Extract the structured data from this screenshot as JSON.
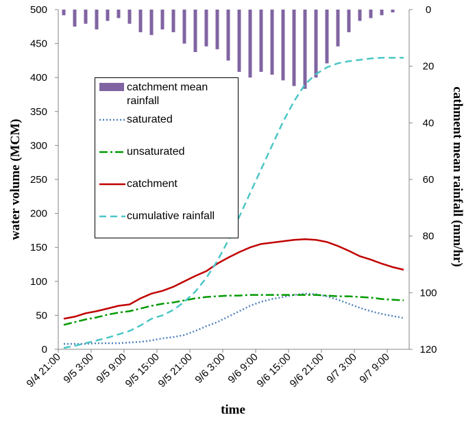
{
  "chart_data": {
    "type": "combo",
    "x_label": "time",
    "y_label": "water volume (MCM)",
    "y2_label": "cathment  mean rainfall (mm/hr)",
    "categories": [
      "9/4 21:00",
      null,
      null,
      "9/5 3:00",
      null,
      null,
      "9/5 9:00",
      null,
      null,
      "9/5 15:00",
      null,
      null,
      "9/5 21:00",
      null,
      null,
      "9/6 3:00",
      null,
      null,
      "9/6 9:00",
      null,
      null,
      "9/6 15:00",
      null,
      null,
      "9/6 21:00",
      null,
      null,
      "9/7 3:00",
      null,
      null,
      "9/7 9:00",
      null
    ],
    "ylim": [
      0,
      500
    ],
    "yticks": [
      0,
      50,
      100,
      150,
      200,
      250,
      300,
      350,
      400,
      450,
      500
    ],
    "y2lim": [
      0,
      120
    ],
    "y2ticks": [
      0,
      20,
      40,
      60,
      80,
      100,
      120
    ],
    "y2_inverted": true,
    "series": [
      {
        "name": "catchment mean rainfall",
        "type": "bar",
        "axis": "y2",
        "color": "#8064a2",
        "values": [
          2,
          6,
          5,
          7,
          4,
          3,
          5,
          8,
          9,
          7,
          8,
          12,
          15,
          13,
          14,
          18,
          22,
          24,
          22,
          23,
          25,
          27,
          28,
          24,
          19,
          13,
          8,
          4,
          3,
          2,
          1,
          0
        ]
      },
      {
        "name": "saturated",
        "type": "line",
        "color": "#4f81bd",
        "dash": "2 3",
        "values": [
          8,
          8,
          8,
          9,
          9,
          9,
          10,
          11,
          13,
          16,
          18,
          21,
          27,
          34,
          40,
          48,
          56,
          64,
          70,
          74,
          77,
          80,
          82,
          81,
          78,
          73,
          67,
          61,
          56,
          52,
          49,
          46
        ]
      },
      {
        "name": "unsaturated",
        "type": "line",
        "color": "#009900",
        "dash": "12 4 3 4",
        "values": [
          36,
          40,
          44,
          47,
          51,
          54,
          56,
          60,
          64,
          67,
          69,
          72,
          75,
          77,
          78,
          79,
          79,
          80,
          80,
          80,
          80,
          80,
          80,
          80,
          79,
          78,
          78,
          77,
          76,
          74,
          73,
          72
        ]
      },
      {
        "name": "catchment",
        "type": "line",
        "color": "#c00000",
        "dash": "none",
        "values": [
          45,
          48,
          53,
          56,
          60,
          64,
          66,
          75,
          82,
          86,
          92,
          100,
          108,
          115,
          126,
          135,
          143,
          150,
          155,
          157,
          159,
          161,
          162,
          161,
          158,
          152,
          145,
          137,
          132,
          126,
          121,
          117
        ]
      },
      {
        "name": "cumulative rainfall",
        "type": "line",
        "color": "#4bc6c6",
        "dash": "10 6",
        "values": [
          2,
          5,
          9,
          13,
          17,
          22,
          27,
          35,
          45,
          50,
          58,
          70,
          85,
          105,
          130,
          160,
          195,
          230,
          265,
          300,
          335,
          365,
          390,
          405,
          415,
          421,
          424,
          426,
          428,
          429,
          429,
          429
        ]
      }
    ]
  }
}
